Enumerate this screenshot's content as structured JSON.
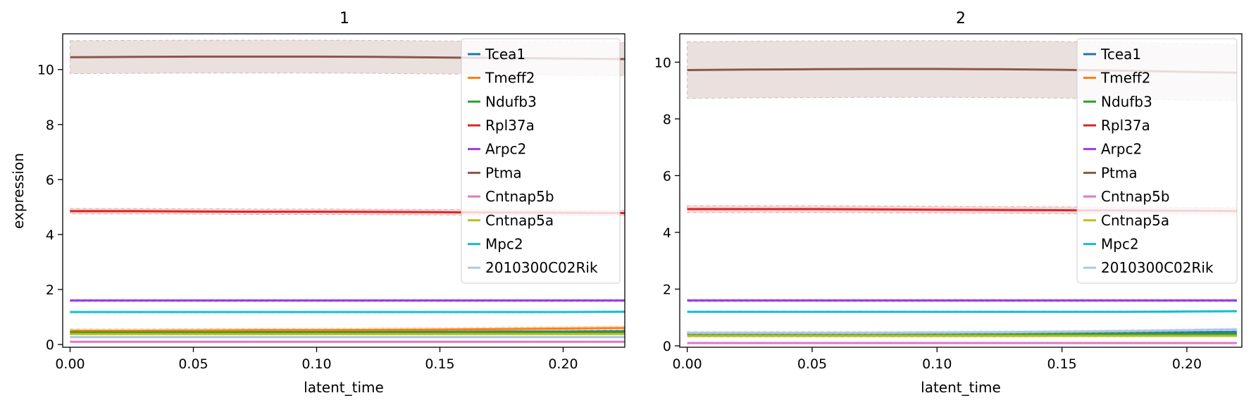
{
  "chart_data": [
    {
      "type": "line",
      "title": "1",
      "xlabel": "latent_time",
      "ylabel": "expression",
      "xlim": [
        -0.003,
        0.225
      ],
      "ylim": [
        -0.1,
        11.3
      ],
      "xticks": [
        "0.00",
        "0.05",
        "0.10",
        "0.15",
        "0.20"
      ],
      "yticks": [
        "0",
        "2",
        "4",
        "6",
        "8",
        "10"
      ],
      "legend_position": "top-right",
      "grid": false,
      "x": [
        0.0,
        0.025,
        0.05,
        0.075,
        0.1,
        0.125,
        0.15,
        0.175,
        0.2,
        0.225
      ],
      "series": [
        {
          "name": "Tcea1",
          "color": "#1f77b4",
          "values": [
            0.45,
            0.45,
            0.45,
            0.45,
            0.45,
            0.46,
            0.46,
            0.47,
            0.47,
            0.48
          ],
          "band": 0.04
        },
        {
          "name": "Tmeff2",
          "color": "#ff7f0e",
          "values": [
            0.5,
            0.5,
            0.51,
            0.52,
            0.52,
            0.53,
            0.54,
            0.56,
            0.58,
            0.6
          ],
          "band": 0.07
        },
        {
          "name": "Ndufb3",
          "color": "#2ca02c",
          "values": [
            0.44,
            0.44,
            0.44,
            0.44,
            0.44,
            0.44,
            0.44,
            0.44,
            0.44,
            0.44
          ],
          "band": 0.03
        },
        {
          "name": "Rpl37a",
          "color": "#d62728",
          "values": [
            4.85,
            4.85,
            4.84,
            4.83,
            4.83,
            4.82,
            4.81,
            4.8,
            4.79,
            4.78
          ],
          "band": 0.1
        },
        {
          "name": "Arpc2",
          "color": "#9c3aea",
          "values": [
            1.6,
            1.6,
            1.6,
            1.6,
            1.6,
            1.6,
            1.6,
            1.6,
            1.6,
            1.6
          ],
          "band": 0.04
        },
        {
          "name": "Ptma",
          "color": "#8c564b",
          "values": [
            10.45,
            10.46,
            10.47,
            10.47,
            10.47,
            10.46,
            10.44,
            10.42,
            10.4,
            10.38
          ],
          "band": 0.6
        },
        {
          "name": "Cntnap5b",
          "color": "#e377c2",
          "values": [
            0.1,
            0.1,
            0.1,
            0.1,
            0.1,
            0.1,
            0.1,
            0.1,
            0.1,
            0.1
          ],
          "band": 0.02
        },
        {
          "name": "Cntnap5a",
          "color": "#bcbd22",
          "values": [
            0.38,
            0.38,
            0.38,
            0.38,
            0.38,
            0.38,
            0.38,
            0.38,
            0.38,
            0.38
          ],
          "band": 0.03
        },
        {
          "name": "Mpc2",
          "color": "#17becf",
          "values": [
            1.18,
            1.18,
            1.18,
            1.18,
            1.18,
            1.18,
            1.18,
            1.18,
            1.18,
            1.19
          ],
          "band": 0.03
        },
        {
          "name": "2010300C02Rik",
          "color": "#aec7e8",
          "values": [
            0.27,
            0.27,
            0.27,
            0.27,
            0.27,
            0.27,
            0.27,
            0.27,
            0.27,
            0.27
          ],
          "band": 0.02
        }
      ]
    },
    {
      "type": "line",
      "title": "2",
      "xlabel": "latent_time",
      "ylabel": "",
      "xlim": [
        -0.003,
        0.222
      ],
      "ylim": [
        -0.05,
        11.0
      ],
      "xticks": [
        "0.00",
        "0.05",
        "0.10",
        "0.15",
        "0.20"
      ],
      "yticks": [
        "0",
        "2",
        "4",
        "6",
        "8",
        "10"
      ],
      "legend_position": "top-right",
      "grid": false,
      "x": [
        0.0,
        0.025,
        0.05,
        0.075,
        0.1,
        0.125,
        0.15,
        0.175,
        0.2,
        0.22
      ],
      "series": [
        {
          "name": "Tcea1",
          "color": "#1f77b4",
          "values": [
            0.45,
            0.45,
            0.45,
            0.45,
            0.45,
            0.46,
            0.46,
            0.47,
            0.48,
            0.49
          ],
          "band": 0.04
        },
        {
          "name": "Tmeff2",
          "color": "#ff7f0e",
          "values": [
            0.35,
            0.35,
            0.35,
            0.35,
            0.35,
            0.35,
            0.36,
            0.36,
            0.37,
            0.38
          ],
          "band": 0.04
        },
        {
          "name": "Ndufb3",
          "color": "#2ca02c",
          "values": [
            0.42,
            0.42,
            0.42,
            0.42,
            0.42,
            0.42,
            0.42,
            0.42,
            0.42,
            0.42
          ],
          "band": 0.03
        },
        {
          "name": "Rpl37a",
          "color": "#d62728",
          "values": [
            4.82,
            4.82,
            4.82,
            4.81,
            4.8,
            4.79,
            4.78,
            4.77,
            4.76,
            4.75
          ],
          "band": 0.12
        },
        {
          "name": "Arpc2",
          "color": "#9c3aea",
          "values": [
            1.6,
            1.6,
            1.6,
            1.6,
            1.6,
            1.6,
            1.6,
            1.6,
            1.6,
            1.6
          ],
          "band": 0.04
        },
        {
          "name": "Ptma",
          "color": "#8c564b",
          "values": [
            9.72,
            9.74,
            9.75,
            9.76,
            9.76,
            9.75,
            9.73,
            9.7,
            9.66,
            9.63
          ],
          "band": 1.0
        },
        {
          "name": "Cntnap5b",
          "color": "#e377c2",
          "values": [
            0.1,
            0.1,
            0.1,
            0.1,
            0.1,
            0.1,
            0.1,
            0.1,
            0.1,
            0.1
          ],
          "band": 0.02
        },
        {
          "name": "Cntnap5a",
          "color": "#bcbd22",
          "values": [
            0.35,
            0.35,
            0.35,
            0.35,
            0.35,
            0.35,
            0.35,
            0.35,
            0.35,
            0.35
          ],
          "band": 0.03
        },
        {
          "name": "Mpc2",
          "color": "#17becf",
          "values": [
            1.2,
            1.2,
            1.2,
            1.2,
            1.2,
            1.2,
            1.2,
            1.2,
            1.21,
            1.22
          ],
          "band": 0.03
        },
        {
          "name": "2010300C02Rik",
          "color": "#aec7e8",
          "values": [
            0.46,
            0.46,
            0.46,
            0.46,
            0.47,
            0.48,
            0.5,
            0.52,
            0.55,
            0.58
          ],
          "band": 0.05
        }
      ]
    }
  ]
}
